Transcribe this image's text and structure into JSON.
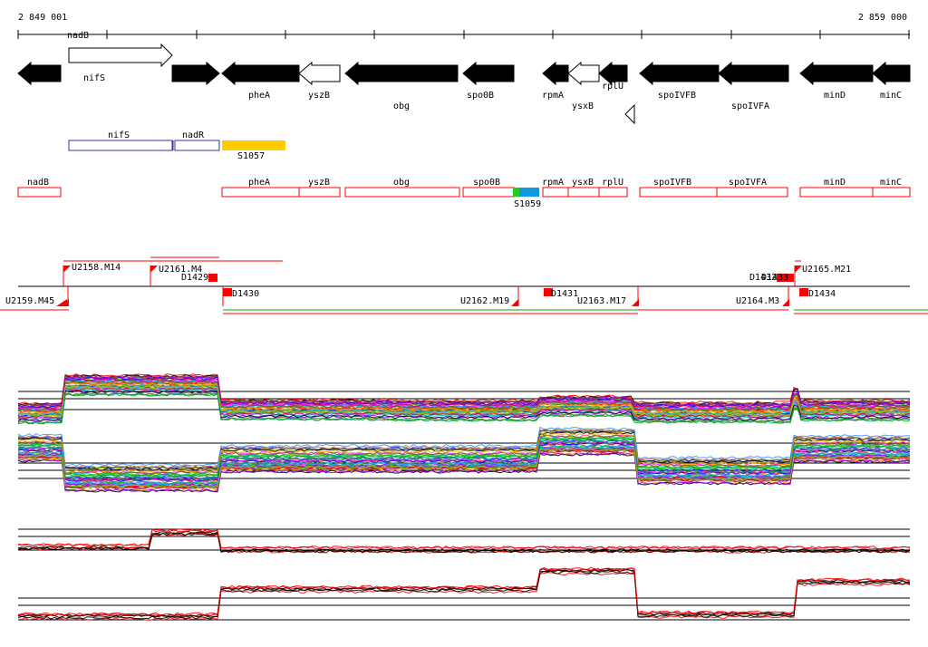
{
  "coords": {
    "start": "2 849 001",
    "end": "2 859 000"
  },
  "genes": [
    {
      "label": "nadB",
      "label_above": false,
      "fill": "black",
      "dir": "L"
    },
    {
      "label": "nifS",
      "label_above": true,
      "fill": "white",
      "dir": "R"
    },
    {
      "label": "nadR",
      "label_above": false,
      "fill": "black",
      "dir": "R"
    },
    {
      "label": "pheA",
      "label_above": false,
      "fill": "black",
      "dir": "L"
    },
    {
      "label": "yszB",
      "label_above": false,
      "fill": "white",
      "dir": "L"
    },
    {
      "label": "obg",
      "label_above": false,
      "fill": "black",
      "dir": "L"
    },
    {
      "label": "spo0B",
      "label_above": false,
      "fill": "black",
      "dir": "L"
    },
    {
      "label": "rpmA",
      "label_above": false,
      "fill": "black",
      "dir": "L"
    },
    {
      "label": "ysxB",
      "label_above": false,
      "fill": "white",
      "dir": "L"
    },
    {
      "label": "rplU",
      "label_above": false,
      "fill": "black",
      "dir": "L"
    },
    {
      "label": "spoIVFB",
      "label_above": false,
      "fill": "black",
      "dir": "L"
    },
    {
      "label": "spoIVFA",
      "label_above": false,
      "fill": "black",
      "dir": "L"
    },
    {
      "label": "minD",
      "label_above": false,
      "fill": "black",
      "dir": "L"
    },
    {
      "label": "minC",
      "label_above": false,
      "fill": "black",
      "dir": "L"
    }
  ],
  "operon_boxes": [
    {
      "label": "nifS",
      "color": "#3333aa"
    },
    {
      "label": "nadR",
      "color": "#3333aa"
    }
  ],
  "yellow_feature": {
    "label": "S1057",
    "color": "#ffcc00"
  },
  "red_boxes": [
    {
      "label": "nadB"
    },
    {
      "label": "pheA"
    },
    {
      "label": "yszB"
    },
    {
      "label": "obg"
    },
    {
      "label": "spo0B"
    },
    {
      "label": "rpmA"
    },
    {
      "label": "ysxB"
    },
    {
      "label": "rplU"
    },
    {
      "label": "spoIVFB"
    },
    {
      "label": "spoIVFA"
    },
    {
      "label": "minD"
    },
    {
      "label": "minC"
    }
  ],
  "s1059": {
    "label": "S1059",
    "colors": [
      "#22cc22",
      "#1199dd"
    ]
  },
  "upper_markers": [
    {
      "label": "U2158.M14"
    },
    {
      "label": "U2161.M4"
    },
    {
      "label": "U2165.M21"
    }
  ],
  "lower_markers": [
    {
      "label": "U2159.M45"
    },
    {
      "label": "U2162.M19"
    },
    {
      "label": "U2163.M17"
    },
    {
      "label": "U2164.M3"
    }
  ],
  "d_markers": [
    {
      "label": "D1429"
    },
    {
      "label": "D1430"
    },
    {
      "label": "D1431"
    },
    {
      "label": "D1432"
    },
    {
      "label": "D1433"
    },
    {
      "label": "D1434"
    }
  ],
  "colors": {
    "red": "#ff0000",
    "green": "#00aa00",
    "black": "#000000"
  }
}
